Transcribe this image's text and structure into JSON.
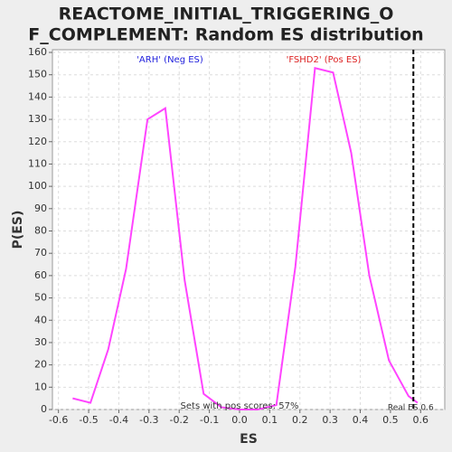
{
  "chart_data": {
    "type": "line",
    "title": "REACTOME_INITIAL_TRIGGERING_OF_COMPLEMENT: Random ES distribution",
    "x_label": "ES",
    "y_label": "P(ES)",
    "x": [
      -0.553,
      -0.494,
      -0.435,
      -0.376,
      -0.305,
      -0.246,
      -0.182,
      -0.119,
      -0.06,
      0.0,
      0.06,
      0.122,
      0.185,
      0.25,
      0.31,
      0.37,
      0.43,
      0.495,
      0.56,
      0.59
    ],
    "series": [
      {
        "color": "#ff44ff",
        "values": [
          5,
          3,
          27,
          63,
          130,
          135,
          58,
          7,
          1,
          0,
          0,
          2,
          64,
          153,
          151,
          115,
          60,
          22,
          6,
          3
        ]
      }
    ],
    "xlim": [
      -0.62,
      0.68
    ],
    "ylim": [
      0,
      160
    ],
    "xticks": [
      -0.6,
      -0.5,
      -0.4,
      -0.3,
      -0.2,
      -0.1,
      {
        "value": 0,
        "label": "0.0"
      },
      0.1,
      0.2,
      0.3,
      0.4,
      0.5,
      0.6
    ],
    "yticks": [
      0,
      10,
      20,
      30,
      40,
      50,
      60,
      70,
      80,
      90,
      100,
      110,
      120,
      130,
      140,
      150,
      160
    ],
    "grid": true,
    "vline": {
      "x": 0.576,
      "label": "Real ES 0.6"
    },
    "annotations": [
      {
        "text": "'ARH' (Neg ES)",
        "color": "#2222dd"
      },
      {
        "text": "'FSHD2' (Pos ES)",
        "color": "#dd2222"
      },
      {
        "text": "Sets with pos scores: 57%",
        "color": "#333333"
      }
    ]
  }
}
